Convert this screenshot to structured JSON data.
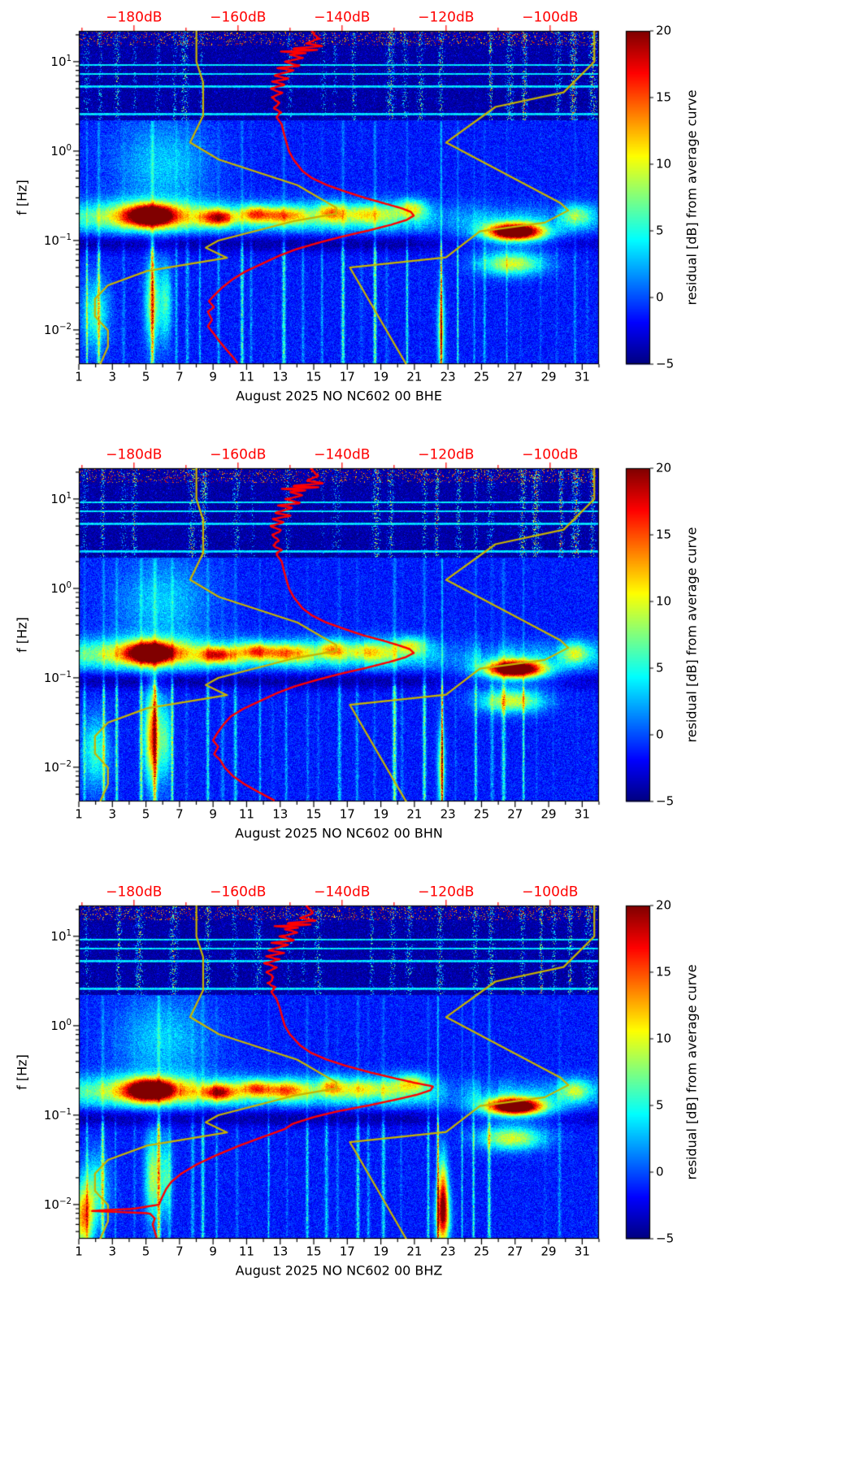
{
  "shared": {
    "ylabel": "f [Hz]",
    "top_axis_labels": [
      "−180dB",
      "−160dB",
      "−140dB",
      "−120dB",
      "−100dB"
    ],
    "top_axis_values": [
      -180,
      -160,
      -140,
      -120,
      -100
    ],
    "x_tick_labels": [
      "1",
      "3",
      "5",
      "7",
      "9",
      "11",
      "13",
      "15",
      "17",
      "19",
      "21",
      "23",
      "25",
      "27",
      "29",
      "31"
    ],
    "x_tick_days": [
      1,
      3,
      5,
      7,
      9,
      11,
      13,
      15,
      17,
      19,
      21,
      23,
      25,
      27,
      29,
      31
    ],
    "y_tick_labels": [
      {
        "base": "10",
        "exp": "1"
      },
      {
        "base": "10",
        "exp": "0"
      },
      {
        "base": "10",
        "exp": "−1"
      },
      {
        "base": "10",
        "exp": "−2"
      }
    ],
    "y_tick_values": [
      10,
      1,
      0.1,
      0.01
    ],
    "colorbar": {
      "label": "residual [dB] from average curve",
      "tick_labels": [
        "20",
        "15",
        "10",
        "5",
        "0",
        "−5"
      ],
      "tick_values": [
        20,
        15,
        10,
        5,
        0,
        -5
      ],
      "range": [
        -5,
        20
      ],
      "colormap": "jet"
    },
    "colors": {
      "curve_red": "#ff0000",
      "curve_model": "#c8b400",
      "top_axis_text": "#ff0000",
      "axis": "#000000",
      "background": "#ffffff"
    },
    "x_range_days": [
      1,
      32
    ],
    "f_range_hz": [
      0.00415,
      22.1
    ],
    "top_db_range": [
      -190.6,
      -90.6
    ],
    "peterson_nlnm_period_db": [
      [
        0.1,
        -168
      ],
      [
        0.17,
        -166.7
      ],
      [
        0.4,
        -166.7
      ],
      [
        0.8,
        -169.2
      ],
      [
        1.24,
        -163.7
      ],
      [
        2.4,
        -148.6
      ],
      [
        4.3,
        -141.1
      ],
      [
        5,
        -141.1
      ],
      [
        6,
        -149
      ],
      [
        10,
        -163.8
      ],
      [
        12,
        -166.2
      ],
      [
        15.6,
        -162.1
      ],
      [
        21.9,
        -177.5
      ],
      [
        31.6,
        -185
      ],
      [
        45,
        -187.5
      ],
      [
        70,
        -187.5
      ],
      [
        101,
        -185
      ],
      [
        154,
        -185
      ],
      [
        328,
        -187.5
      ]
    ],
    "peterson_nhnm_period_db": [
      [
        0.1,
        -91.5
      ],
      [
        0.22,
        -97.4
      ],
      [
        0.32,
        -110.5
      ],
      [
        0.8,
        -120
      ],
      [
        3.8,
        -98
      ],
      [
        4.6,
        -96.5
      ],
      [
        6.3,
        -101
      ],
      [
        7.9,
        -113.5
      ],
      [
        15.4,
        -120
      ],
      [
        20,
        -138.5
      ],
      [
        354.8,
        -126
      ]
    ],
    "spectrogram_features": {
      "high_band_min_hz": 2.2,
      "microseism_band": {
        "f_center": 0.182,
        "amp_db": 7,
        "active_days": [
          1,
          20.5
        ],
        "quiet_days": [
          23,
          24.5
        ]
      },
      "quiet_notch": {
        "f_center": 0.093,
        "amp_db": -3
      },
      "mid_glow": {
        "day": 6,
        "f_center": 0.7,
        "amp_db": 4.5
      },
      "blobs": [
        [
          5.3,
          0.19,
          1.3,
          0.11,
          23
        ],
        [
          5.3,
          0.19,
          2.6,
          0.18,
          6
        ],
        [
          9.3,
          0.18,
          1.0,
          0.09,
          13
        ],
        [
          11.5,
          0.2,
          0.8,
          0.09,
          9
        ],
        [
          13.2,
          0.19,
          1.4,
          0.1,
          10
        ],
        [
          16.0,
          0.21,
          0.7,
          0.1,
          8
        ],
        [
          18.0,
          0.2,
          1.6,
          0.1,
          6
        ],
        [
          20.8,
          0.23,
          0.9,
          0.1,
          8
        ],
        [
          27.0,
          0.125,
          1.5,
          0.085,
          24
        ],
        [
          27.0,
          0.125,
          2.6,
          0.16,
          7
        ],
        [
          26.8,
          0.055,
          1.9,
          0.13,
          11
        ],
        [
          30.6,
          0.19,
          0.9,
          0.12,
          7
        ],
        [
          2.0,
          0.015,
          0.8,
          0.4,
          7
        ],
        [
          5.4,
          0.02,
          0.45,
          0.5,
          10
        ],
        [
          6.2,
          0.02,
          0.35,
          0.45,
          7
        ]
      ]
    }
  },
  "chart_data": [
    {
      "type": "heatmap",
      "subtype": "spectrogram",
      "title": "August 2025 NO NC602 00 BHE",
      "channel": "BHE",
      "month": "August 2025",
      "station": "NO NC602 00",
      "y_scale": "log",
      "x_range_days": [
        1,
        32
      ],
      "f_range_hz": [
        0.00415,
        22.1
      ],
      "residual_range_db": [
        -5,
        20
      ],
      "psd_curve_hz_db": [
        [
          22,
          -146
        ],
        [
          18,
          -144.5
        ],
        [
          16,
          -147
        ],
        [
          15,
          -143.5
        ],
        [
          14,
          -150
        ],
        [
          13.5,
          -144
        ],
        [
          13,
          -152
        ],
        [
          12.5,
          -147
        ],
        [
          12,
          -150
        ],
        [
          11,
          -147.5
        ],
        [
          10,
          -151
        ],
        [
          9,
          -148
        ],
        [
          8.5,
          -152.5
        ],
        [
          8,
          -149.5
        ],
        [
          7,
          -153
        ],
        [
          6.5,
          -150
        ],
        [
          6,
          -153.5
        ],
        [
          5.5,
          -151
        ],
        [
          5,
          -153.8
        ],
        [
          4.5,
          -151.5
        ],
        [
          4,
          -153.5
        ],
        [
          3.5,
          -152
        ],
        [
          3,
          -153.3
        ],
        [
          2.7,
          -151.8
        ],
        [
          2.4,
          -152.6
        ],
        [
          2,
          -151.6
        ],
        [
          1.6,
          -151.2
        ],
        [
          1.2,
          -150.6
        ],
        [
          1,
          -150.2
        ],
        [
          0.8,
          -149.3
        ],
        [
          0.6,
          -147.6
        ],
        [
          0.5,
          -145.8
        ],
        [
          0.42,
          -143
        ],
        [
          0.36,
          -139.8
        ],
        [
          0.3,
          -135.6
        ],
        [
          0.26,
          -131.8
        ],
        [
          0.23,
          -128.6
        ],
        [
          0.21,
          -126.8
        ],
        [
          0.19,
          -126.2
        ],
        [
          0.17,
          -127.6
        ],
        [
          0.15,
          -130.6
        ],
        [
          0.13,
          -134.8
        ],
        [
          0.11,
          -140.2
        ],
        [
          0.095,
          -144.4
        ],
        [
          0.08,
          -148.8
        ],
        [
          0.068,
          -152
        ],
        [
          0.055,
          -155.4
        ],
        [
          0.045,
          -158.6
        ],
        [
          0.037,
          -161
        ],
        [
          0.03,
          -163
        ],
        [
          0.025,
          -164.4
        ],
        [
          0.021,
          -165.6
        ],
        [
          0.018,
          -164.6
        ],
        [
          0.016,
          -165.8
        ],
        [
          0.013,
          -165
        ],
        [
          0.011,
          -165.8
        ],
        [
          0.009,
          -164.6
        ],
        [
          0.0075,
          -163.6
        ],
        [
          0.006,
          -162.2
        ],
        [
          0.005,
          -161
        ],
        [
          0.0042,
          -160
        ]
      ],
      "extra_blobs": [
        [
          22.6,
          0.01,
          0.22,
          0.5,
          10
        ]
      ]
    },
    {
      "type": "heatmap",
      "subtype": "spectrogram",
      "title": "August 2025 NO NC602 00 BHN",
      "channel": "BHN",
      "month": "August 2025",
      "station": "NO NC602 00",
      "y_scale": "log",
      "x_range_days": [
        1,
        32
      ],
      "f_range_hz": [
        0.00415,
        22.1
      ],
      "residual_range_db": [
        -5,
        20
      ],
      "psd_curve_hz_db": [
        [
          22,
          -146
        ],
        [
          18,
          -144.5
        ],
        [
          16,
          -147
        ],
        [
          15,
          -143.5
        ],
        [
          14,
          -150
        ],
        [
          13.5,
          -144
        ],
        [
          13,
          -152
        ],
        [
          12.5,
          -147
        ],
        [
          12,
          -150
        ],
        [
          11,
          -147.5
        ],
        [
          10,
          -151
        ],
        [
          9,
          -148
        ],
        [
          8.5,
          -152.5
        ],
        [
          8,
          -149.5
        ],
        [
          7,
          -153
        ],
        [
          6.5,
          -150
        ],
        [
          6,
          -153.5
        ],
        [
          5.5,
          -151
        ],
        [
          5,
          -153.8
        ],
        [
          4.5,
          -151.5
        ],
        [
          4,
          -153.5
        ],
        [
          3.5,
          -152
        ],
        [
          3,
          -153.3
        ],
        [
          2.7,
          -151.8
        ],
        [
          2.4,
          -152.6
        ],
        [
          2,
          -151.6
        ],
        [
          1.6,
          -151.2
        ],
        [
          1.2,
          -150.6
        ],
        [
          1,
          -150.2
        ],
        [
          0.8,
          -149.3
        ],
        [
          0.6,
          -147.6
        ],
        [
          0.5,
          -145.8
        ],
        [
          0.42,
          -143.2
        ],
        [
          0.36,
          -140
        ],
        [
          0.3,
          -136
        ],
        [
          0.26,
          -132
        ],
        [
          0.23,
          -129
        ],
        [
          0.21,
          -127
        ],
        [
          0.19,
          -126.2
        ],
        [
          0.17,
          -127.8
        ],
        [
          0.15,
          -131
        ],
        [
          0.13,
          -135.2
        ],
        [
          0.11,
          -140.6
        ],
        [
          0.095,
          -144.8
        ],
        [
          0.08,
          -149.2
        ],
        [
          0.068,
          -152.4
        ],
        [
          0.055,
          -155.8
        ],
        [
          0.045,
          -159
        ],
        [
          0.037,
          -161.4
        ],
        [
          0.03,
          -162.8
        ],
        [
          0.024,
          -164
        ],
        [
          0.02,
          -164.8
        ],
        [
          0.017,
          -163.8
        ],
        [
          0.014,
          -164.6
        ],
        [
          0.012,
          -163.4
        ],
        [
          0.01,
          -162.6
        ],
        [
          0.008,
          -161
        ],
        [
          0.0065,
          -158.8
        ],
        [
          0.0055,
          -156.6
        ],
        [
          0.0045,
          -153.8
        ],
        [
          0.0042,
          -152.8
        ]
      ],
      "extra_blobs": [
        [
          22.6,
          0.01,
          0.22,
          0.5,
          10
        ],
        [
          5.4,
          0.025,
          0.5,
          0.55,
          6
        ]
      ]
    },
    {
      "type": "heatmap",
      "subtype": "spectrogram",
      "title": "August 2025 NO NC602 00 BHZ",
      "channel": "BHZ",
      "month": "August 2025",
      "station": "NO NC602 00",
      "y_scale": "log",
      "x_range_days": [
        1,
        32
      ],
      "f_range_hz": [
        0.00415,
        22.1
      ],
      "residual_range_db": [
        -5,
        20
      ],
      "psd_curve_hz_db": [
        [
          22,
          -147
        ],
        [
          18,
          -145.5
        ],
        [
          16,
          -148
        ],
        [
          15,
          -144.5
        ],
        [
          14,
          -151
        ],
        [
          13.5,
          -145
        ],
        [
          13,
          -153
        ],
        [
          12.5,
          -148
        ],
        [
          12,
          -151
        ],
        [
          11,
          -148.5
        ],
        [
          10,
          -152
        ],
        [
          9,
          -149
        ],
        [
          8.5,
          -153.5
        ],
        [
          8,
          -150.5
        ],
        [
          7,
          -154
        ],
        [
          6.5,
          -151
        ],
        [
          6,
          -154.5
        ],
        [
          5.5,
          -152
        ],
        [
          5,
          -154.8
        ],
        [
          4.5,
          -152.5
        ],
        [
          4,
          -154.5
        ],
        [
          3.5,
          -153
        ],
        [
          3,
          -154.3
        ],
        [
          2.7,
          -152.8
        ],
        [
          2.4,
          -153.6
        ],
        [
          2,
          -152.6
        ],
        [
          1.6,
          -152
        ],
        [
          1.2,
          -151.4
        ],
        [
          1,
          -151
        ],
        [
          0.8,
          -150
        ],
        [
          0.6,
          -148
        ],
        [
          0.5,
          -146
        ],
        [
          0.42,
          -143
        ],
        [
          0.36,
          -139.5
        ],
        [
          0.3,
          -134.5
        ],
        [
          0.26,
          -130
        ],
        [
          0.23,
          -126
        ],
        [
          0.21,
          -122.5
        ],
        [
          0.19,
          -123
        ],
        [
          0.17,
          -125.5
        ],
        [
          0.15,
          -129.5
        ],
        [
          0.13,
          -134.5
        ],
        [
          0.11,
          -141
        ],
        [
          0.095,
          -145.5
        ],
        [
          0.08,
          -149.5
        ],
        [
          0.07,
          -151
        ],
        [
          0.055,
          -156
        ],
        [
          0.045,
          -160
        ],
        [
          0.035,
          -164.5
        ],
        [
          0.028,
          -168
        ],
        [
          0.022,
          -171
        ],
        [
          0.018,
          -172.8
        ],
        [
          0.015,
          -173.8
        ],
        [
          0.012,
          -174.6
        ],
        [
          0.01,
          -175.2
        ],
        [
          0.009,
          -180
        ],
        [
          0.0085,
          -188.5
        ],
        [
          0.008,
          -177
        ],
        [
          0.007,
          -176
        ],
        [
          0.006,
          -176.4
        ],
        [
          0.005,
          -176
        ],
        [
          0.0042,
          -175.6
        ]
      ],
      "extra_blobs": [
        [
          22.7,
          0.012,
          0.3,
          0.45,
          16
        ],
        [
          22.7,
          0.007,
          0.45,
          0.3,
          10
        ],
        [
          1.3,
          0.007,
          0.55,
          0.35,
          14
        ]
      ]
    }
  ]
}
